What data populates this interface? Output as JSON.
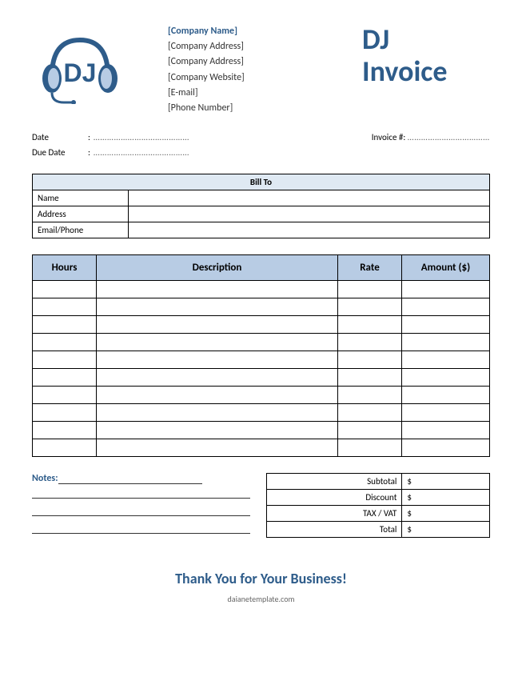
{
  "colors": {
    "brand": "#2e5c8a",
    "header_light": "#dfe9f3",
    "header_mid": "#b8cce4",
    "border": "#000000",
    "text": "#333333",
    "background": "#ffffff"
  },
  "typography": {
    "title_fontsize": 36,
    "heading_fontsize": 18,
    "body_fontsize": 11,
    "font_family": "Calibri"
  },
  "logo": {
    "text": "DJ",
    "type": "headphones-icon"
  },
  "company": {
    "name_placeholder": "[Company Name]",
    "address_line1": "[Company Address]",
    "address_line2": "[Company Address]",
    "website": "[Company Website]",
    "email": "[E-mail]",
    "phone": "[Phone Number]"
  },
  "title_line1": "DJ",
  "title_line2": "Invoice",
  "meta": {
    "date_label": "Date",
    "due_date_label": "Due Date",
    "invoice_num_label": "Invoice #:",
    "date_value": "……………………………………",
    "due_date_value": "……………………………………",
    "invoice_num_value": "………………………………"
  },
  "bill_to": {
    "header": "Bill To",
    "name_label": "Name",
    "address_label": "Address",
    "contact_label": "Email/Phone",
    "name_value": "",
    "address_value": "",
    "contact_value": ""
  },
  "items": {
    "columns": {
      "hours": "Hours",
      "description": "Description",
      "rate": "Rate",
      "amount": "Amount ($)"
    },
    "row_count": 10,
    "rows": [
      {
        "hours": "",
        "description": "",
        "rate": "",
        "amount": ""
      },
      {
        "hours": "",
        "description": "",
        "rate": "",
        "amount": ""
      },
      {
        "hours": "",
        "description": "",
        "rate": "",
        "amount": ""
      },
      {
        "hours": "",
        "description": "",
        "rate": "",
        "amount": ""
      },
      {
        "hours": "",
        "description": "",
        "rate": "",
        "amount": ""
      },
      {
        "hours": "",
        "description": "",
        "rate": "",
        "amount": ""
      },
      {
        "hours": "",
        "description": "",
        "rate": "",
        "amount": ""
      },
      {
        "hours": "",
        "description": "",
        "rate": "",
        "amount": ""
      },
      {
        "hours": "",
        "description": "",
        "rate": "",
        "amount": ""
      },
      {
        "hours": "",
        "description": "",
        "rate": "",
        "amount": ""
      }
    ]
  },
  "notes": {
    "label": "Notes:",
    "line_count": 4
  },
  "totals": {
    "subtotal_label": "Subtotal",
    "discount_label": "Discount",
    "tax_label": "TAX / VAT",
    "total_label": "Total",
    "currency": "$",
    "subtotal_value": "",
    "discount_value": "",
    "tax_value": "",
    "total_value": ""
  },
  "thank_you": "Thank You for Your Business!",
  "credit": "daianetemplate.com"
}
